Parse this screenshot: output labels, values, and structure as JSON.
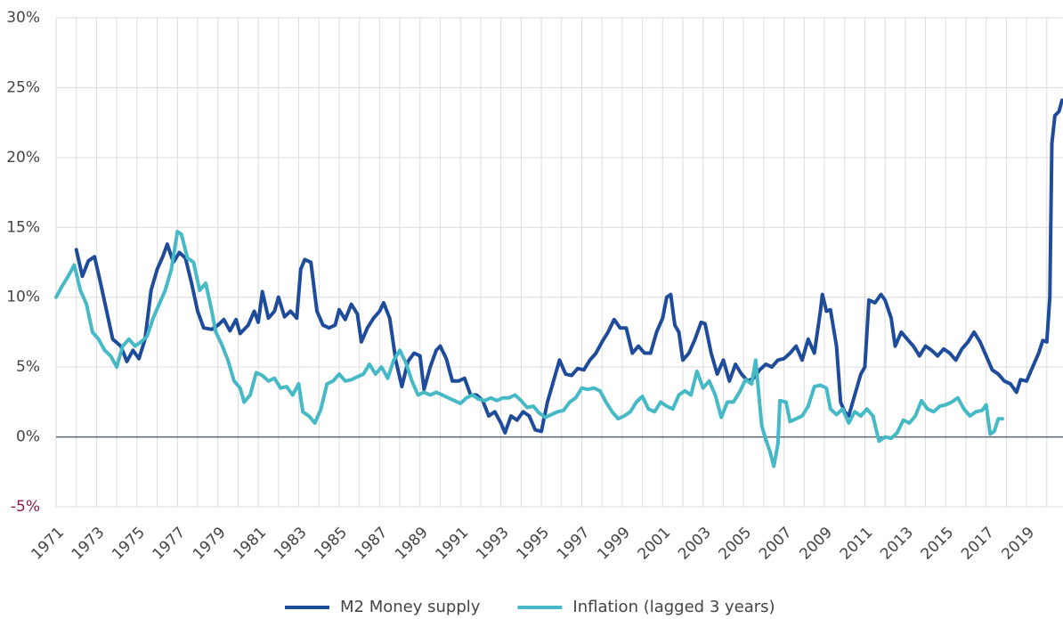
{
  "chart_data": {
    "type": "line",
    "xlim": [
      1971,
      2020.8
    ],
    "xticks": [
      1971,
      1973,
      1975,
      1977,
      1979,
      1981,
      1983,
      1985,
      1987,
      1989,
      1991,
      1993,
      1995,
      1997,
      1999,
      2001,
      2003,
      2005,
      2007,
      2009,
      2011,
      2013,
      2015,
      2017,
      2019
    ],
    "xminor_ticks": [
      1972,
      1974,
      1976,
      1978,
      1980,
      1982,
      1984,
      1986,
      1988,
      1990,
      1992,
      1994,
      1996,
      1998,
      2000,
      2002,
      2004,
      2006,
      2008,
      2010,
      2012,
      2014,
      2016,
      2018,
      2020
    ],
    "ylim": [
      -5,
      30
    ],
    "yticks": [
      {
        "value": -5,
        "label": "-5%"
      },
      {
        "value": 0,
        "label": "0%"
      },
      {
        "value": 5,
        "label": "5%"
      },
      {
        "value": 10,
        "label": "10%"
      },
      {
        "value": 15,
        "label": "15%"
      },
      {
        "value": 20,
        "label": "20%"
      },
      {
        "value": 25,
        "label": "25%"
      },
      {
        "value": 30,
        "label": "30%"
      }
    ],
    "grid": true,
    "negative_label_color": "#8b1a4a",
    "legend": "bottom",
    "series": [
      {
        "name": "M2 Money supply",
        "color": "#1f4b9b",
        "x": [
          1972.0,
          1972.3,
          1972.6,
          1972.9,
          1973.2,
          1973.5,
          1973.8,
          1974.2,
          1974.5,
          1974.8,
          1975.1,
          1975.4,
          1975.7,
          1976.0,
          1976.3,
          1976.5,
          1976.8,
          1977.1,
          1977.4,
          1977.7,
          1978.0,
          1978.3,
          1978.7,
          1979.0,
          1979.3,
          1979.6,
          1979.9,
          1980.1,
          1980.5,
          1980.8,
          1981.0,
          1981.2,
          1981.5,
          1981.8,
          1982.0,
          1982.3,
          1982.6,
          1982.9,
          1983.1,
          1983.3,
          1983.6,
          1983.9,
          1984.2,
          1984.5,
          1984.8,
          1985.0,
          1985.3,
          1985.6,
          1985.9,
          1986.1,
          1986.4,
          1986.7,
          1987.0,
          1987.2,
          1987.5,
          1987.8,
          1988.1,
          1988.4,
          1988.7,
          1989.0,
          1989.2,
          1989.5,
          1989.8,
          1990.0,
          1990.3,
          1990.6,
          1990.9,
          1991.2,
          1991.5,
          1991.8,
          1992.1,
          1992.4,
          1992.7,
          1993.0,
          1993.2,
          1993.5,
          1993.8,
          1994.1,
          1994.4,
          1994.7,
          1995.0,
          1995.3,
          1995.6,
          1995.9,
          1996.2,
          1996.5,
          1996.8,
          1997.1,
          1997.4,
          1997.7,
          1998.0,
          1998.3,
          1998.6,
          1998.9,
          1999.2,
          1999.5,
          1999.8,
          2000.1,
          2000.4,
          2000.7,
          2001.0,
          2001.2,
          2001.4,
          2001.6,
          2001.8,
          2002.0,
          2002.3,
          2002.6,
          2002.9,
          2003.1,
          2003.4,
          2003.7,
          2004.0,
          2004.3,
          2004.6,
          2004.9,
          2005.2,
          2005.5,
          2005.8,
          2006.1,
          2006.4,
          2006.7,
          2007.0,
          2007.3,
          2007.6,
          2007.9,
          2008.2,
          2008.5,
          2008.8,
          2008.9,
          2009.1,
          2009.3,
          2009.6,
          2009.8,
          2010.0,
          2010.2,
          2010.5,
          2010.8,
          2011.0,
          2011.2,
          2011.5,
          2011.8,
          2012.0,
          2012.3,
          2012.5,
          2012.8,
          2013.1,
          2013.4,
          2013.7,
          2014.0,
          2014.3,
          2014.6,
          2014.9,
          2015.2,
          2015.5,
          2015.8,
          2016.1,
          2016.4,
          2016.7,
          2017.0,
          2017.3,
          2017.6,
          2017.9,
          2018.2,
          2018.5,
          2018.7,
          2019.0,
          2019.3,
          2019.6,
          2019.8,
          2020.0,
          2020.15,
          2020.25,
          2020.4,
          2020.6,
          2020.75
        ],
        "values": [
          13.4,
          11.5,
          12.6,
          12.9,
          11.0,
          9.0,
          7.0,
          6.5,
          5.4,
          6.2,
          5.6,
          7.0,
          10.5,
          12.0,
          13.0,
          13.8,
          12.5,
          13.2,
          12.8,
          11.0,
          9.0,
          7.8,
          7.7,
          8.0,
          8.4,
          7.6,
          8.4,
          7.4,
          8.0,
          9.0,
          8.2,
          10.4,
          8.5,
          9.0,
          10.0,
          8.6,
          9.0,
          8.5,
          12.0,
          12.7,
          12.5,
          9.0,
          8.0,
          7.8,
          8.0,
          9.1,
          8.4,
          9.5,
          8.8,
          6.8,
          7.8,
          8.5,
          9.0,
          9.6,
          8.5,
          5.5,
          3.6,
          5.4,
          6.0,
          5.8,
          3.4,
          5.0,
          6.2,
          6.5,
          5.6,
          4.0,
          4.0,
          4.2,
          3.0,
          3.0,
          2.6,
          1.5,
          1.8,
          1.0,
          0.3,
          1.5,
          1.2,
          1.8,
          1.5,
          0.5,
          0.4,
          2.5,
          4.0,
          5.5,
          4.5,
          4.4,
          4.9,
          4.8,
          5.5,
          6.0,
          6.8,
          7.5,
          8.4,
          7.8,
          7.8,
          6.0,
          6.5,
          6.0,
          6.0,
          7.5,
          8.5,
          10.0,
          10.2,
          8.0,
          7.5,
          5.5,
          6.0,
          7.0,
          8.2,
          8.1,
          6.0,
          4.5,
          5.5,
          4.0,
          5.2,
          4.5,
          4.0,
          4.2,
          4.8,
          5.2,
          5.0,
          5.5,
          5.6,
          6.0,
          6.5,
          5.5,
          7.0,
          6.0,
          9.0,
          10.2,
          9.0,
          9.1,
          6.5,
          2.5,
          1.8,
          1.5,
          3.0,
          4.5,
          5.0,
          9.8,
          9.6,
          10.2,
          9.8,
          8.5,
          6.5,
          7.5,
          7.0,
          6.5,
          5.8,
          6.5,
          6.2,
          5.8,
          6.3,
          6.0,
          5.5,
          6.3,
          6.8,
          7.5,
          6.8,
          5.8,
          4.8,
          4.5,
          4.0,
          3.8,
          3.2,
          4.1,
          4.0,
          5.0,
          6.0,
          6.9,
          6.8,
          10.0,
          21.0,
          23.0,
          23.3,
          24.1
        ]
      },
      {
        "name": "Inflation (lagged 3 years)",
        "color": "#45b9c5",
        "x": [
          1971.0,
          1971.3,
          1971.6,
          1971.9,
          1972.2,
          1972.5,
          1972.8,
          1973.1,
          1973.4,
          1973.7,
          1974.0,
          1974.3,
          1974.6,
          1974.9,
          1975.2,
          1975.5,
          1975.8,
          1976.1,
          1976.4,
          1976.7,
          1977.0,
          1977.2,
          1977.5,
          1977.8,
          1978.1,
          1978.4,
          1978.7,
          1978.9,
          1979.2,
          1979.5,
          1979.8,
          1980.1,
          1980.3,
          1980.6,
          1980.9,
          1981.2,
          1981.5,
          1981.8,
          1982.1,
          1982.4,
          1982.7,
          1983.0,
          1983.2,
          1983.5,
          1983.8,
          1984.1,
          1984.4,
          1984.7,
          1985.0,
          1985.3,
          1985.6,
          1985.9,
          1986.2,
          1986.5,
          1986.8,
          1987.1,
          1987.4,
          1987.7,
          1988.0,
          1988.3,
          1988.6,
          1988.9,
          1989.2,
          1989.5,
          1989.8,
          1990.1,
          1990.4,
          1990.7,
          1991.0,
          1991.3,
          1991.6,
          1991.9,
          1992.2,
          1992.5,
          1992.8,
          1993.1,
          1993.4,
          1993.7,
          1994.0,
          1994.3,
          1994.6,
          1994.9,
          1995.2,
          1995.5,
          1995.8,
          1996.1,
          1996.4,
          1996.7,
          1997.0,
          1997.3,
          1997.6,
          1997.9,
          1998.2,
          1998.5,
          1998.8,
          1999.1,
          1999.4,
          1999.7,
          2000.0,
          2000.3,
          2000.6,
          2000.9,
          2001.2,
          2001.5,
          2001.8,
          2002.1,
          2002.4,
          2002.7,
          2003.0,
          2003.3,
          2003.6,
          2003.9,
          2004.2,
          2004.5,
          2004.8,
          2005.1,
          2005.4,
          2005.6,
          2005.9,
          2006.1,
          2006.3,
          2006.5,
          2006.7,
          2006.8,
          2007.1,
          2007.3,
          2007.6,
          2007.9,
          2008.2,
          2008.5,
          2008.8,
          2009.1,
          2009.3,
          2009.6,
          2009.9,
          2010.2,
          2010.5,
          2010.8,
          2011.1,
          2011.4,
          2011.7,
          2012.0,
          2012.3,
          2012.6,
          2012.9,
          2013.2,
          2013.5,
          2013.8,
          2014.1,
          2014.4,
          2014.7,
          2015.0,
          2015.3,
          2015.6,
          2015.9,
          2016.2,
          2016.5,
          2016.8,
          2017.0,
          2017.2,
          2017.4,
          2017.6,
          2017.8
        ],
        "values": [
          10.0,
          10.8,
          11.5,
          12.3,
          10.5,
          9.5,
          7.5,
          7.0,
          6.2,
          5.8,
          5.0,
          6.5,
          7.0,
          6.5,
          6.8,
          7.2,
          8.5,
          9.5,
          10.5,
          12.0,
          14.7,
          14.5,
          12.8,
          12.5,
          10.5,
          11.0,
          9.0,
          7.5,
          6.6,
          5.5,
          4.0,
          3.5,
          2.5,
          3.0,
          4.6,
          4.4,
          4.0,
          4.2,
          3.5,
          3.6,
          3.0,
          3.8,
          1.8,
          1.5,
          1.0,
          2.0,
          3.8,
          4.0,
          4.5,
          4.0,
          4.1,
          4.3,
          4.5,
          5.2,
          4.5,
          5.0,
          4.2,
          5.5,
          6.2,
          5.3,
          4.0,
          3.0,
          3.2,
          3.0,
          3.2,
          3.0,
          2.8,
          2.6,
          2.4,
          2.8,
          3.0,
          2.7,
          2.6,
          2.8,
          2.6,
          2.8,
          2.8,
          3.0,
          2.6,
          2.1,
          2.2,
          1.7,
          1.4,
          1.6,
          1.8,
          1.9,
          2.5,
          2.8,
          3.5,
          3.4,
          3.5,
          3.3,
          2.5,
          1.8,
          1.3,
          1.5,
          1.8,
          2.5,
          2.9,
          2.0,
          1.8,
          2.5,
          2.2,
          2.0,
          3.0,
          3.3,
          3.0,
          4.7,
          3.5,
          4.0,
          3.0,
          1.4,
          2.5,
          2.5,
          3.2,
          4.1,
          3.8,
          5.5,
          0.8,
          -0.2,
          -1.0,
          -2.1,
          -0.5,
          2.6,
          2.5,
          1.1,
          1.3,
          1.5,
          2.2,
          3.6,
          3.7,
          3.5,
          2.0,
          1.6,
          2.0,
          1.0,
          1.8,
          1.5,
          2.0,
          1.5,
          -0.3,
          0.0,
          -0.1,
          0.3,
          1.2,
          1.0,
          1.5,
          2.6,
          2.0,
          1.8,
          2.2,
          2.3,
          2.5,
          2.8,
          2.0,
          1.5,
          1.8,
          1.9,
          2.3,
          0.2,
          0.4,
          1.3,
          1.3
        ]
      }
    ]
  }
}
